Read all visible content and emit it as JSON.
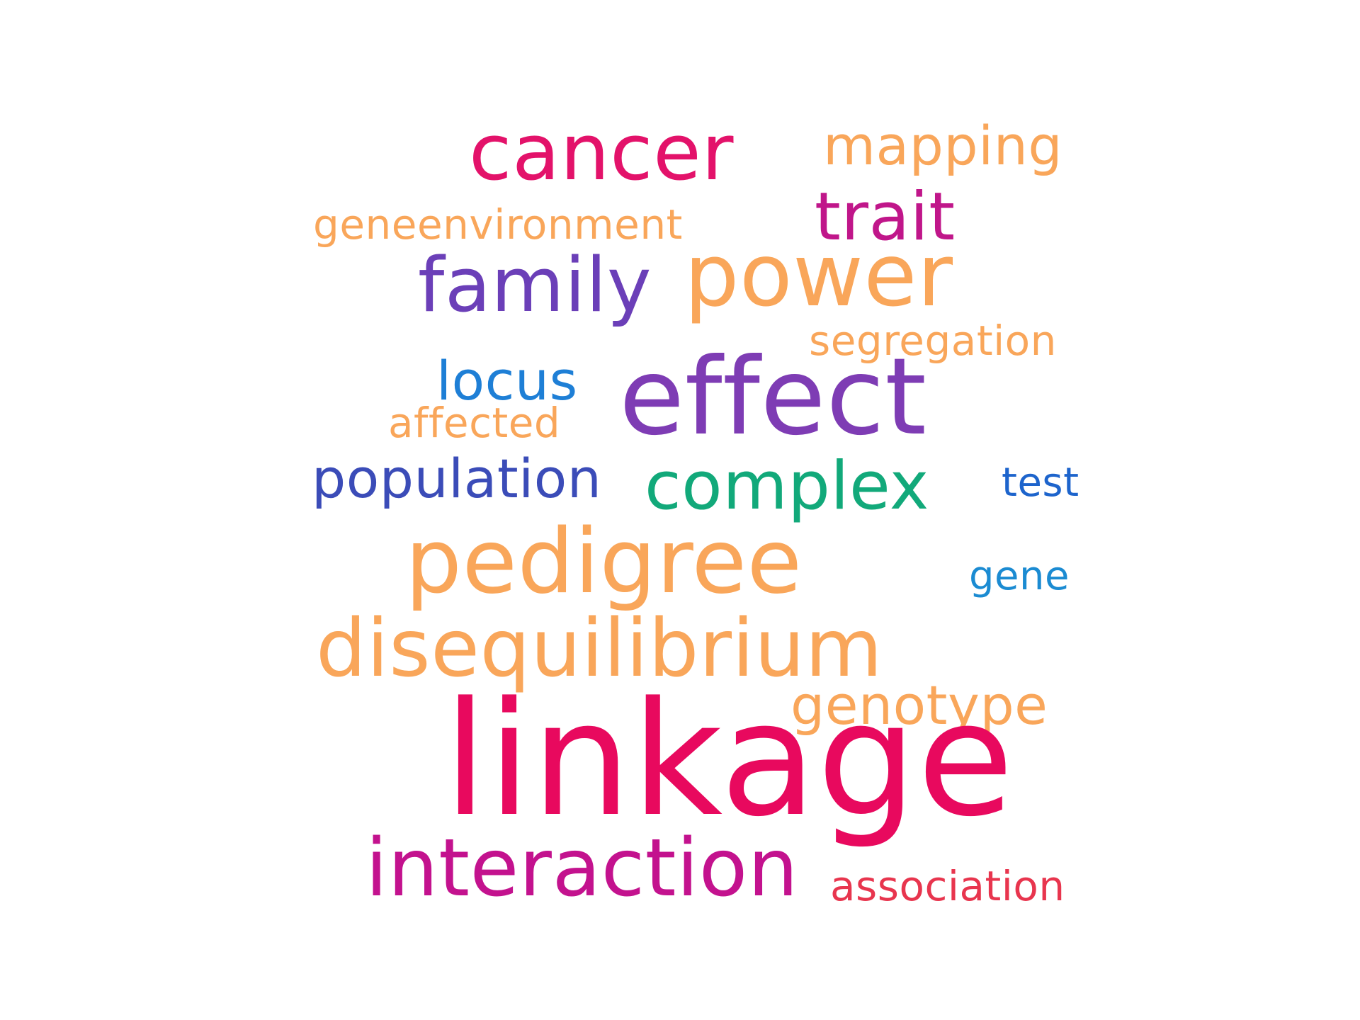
{
  "words": [
    {
      "text": "cancer",
      "color": "#E3126A"
    },
    {
      "text": "mapping",
      "color": "#F9A65A"
    },
    {
      "text": "trait",
      "color": "#C0168A"
    },
    {
      "text": "geneenvironment",
      "color": "#F9A65A"
    },
    {
      "text": "family",
      "color": "#6B3FB8"
    },
    {
      "text": "power",
      "color": "#F9A65A"
    },
    {
      "text": "segregation",
      "color": "#F9A65A"
    },
    {
      "text": "locus",
      "color": "#1E7FD6"
    },
    {
      "text": "effect",
      "color": "#7E3CB4"
    },
    {
      "text": "affected",
      "color": "#F9A65A"
    },
    {
      "text": "population",
      "color": "#3B4CB8"
    },
    {
      "text": "complex",
      "color": "#12A97A"
    },
    {
      "text": "test",
      "color": "#1D64CC"
    },
    {
      "text": "pedigree",
      "color": "#F9A65A"
    },
    {
      "text": "gene",
      "color": "#1B8BD2"
    },
    {
      "text": "disequilibrium",
      "color": "#F9A65A"
    },
    {
      "text": "genotype",
      "color": "#F9A65A"
    },
    {
      "text": "linkage",
      "color": "#E8095E"
    },
    {
      "text": "interaction",
      "color": "#C3128E"
    },
    {
      "text": "association",
      "color": "#E8354E"
    }
  ]
}
